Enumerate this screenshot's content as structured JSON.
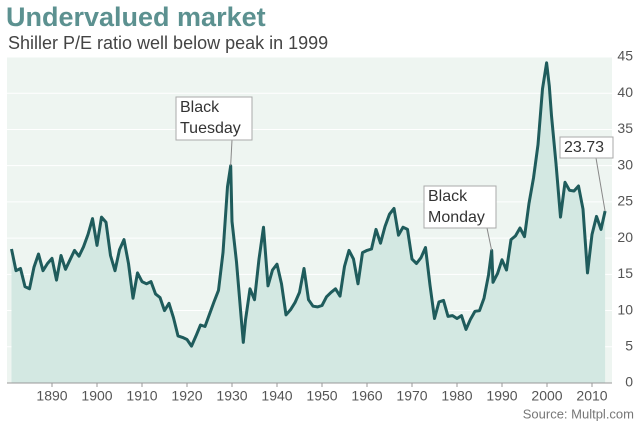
{
  "chart_data": {
    "type": "area",
    "title": "Undervalued market",
    "subtitle": "Shiller P/E ratio well below peak in 1999",
    "source": "Source: Multpl.com",
    "x": [
      1881,
      1882,
      1883,
      1884,
      1885,
      1886,
      1887,
      1888,
      1889,
      1890,
      1891,
      1892,
      1893,
      1894,
      1895,
      1896,
      1897,
      1898,
      1899,
      1900,
      1901,
      1902,
      1903,
      1904,
      1905,
      1906,
      1907,
      1908,
      1909,
      1910,
      1911,
      1912,
      1913,
      1914,
      1915,
      1916,
      1917,
      1918,
      1919,
      1920,
      1921,
      1922,
      1923,
      1924,
      1925,
      1926,
      1927,
      1928,
      1929,
      1929.7,
      1930,
      1931,
      1932,
      1932.5,
      1933,
      1934,
      1935,
      1936,
      1937,
      1938,
      1939,
      1940,
      1941,
      1942,
      1943,
      1944,
      1945,
      1946,
      1947,
      1948,
      1949,
      1950,
      1951,
      1952,
      1953,
      1954,
      1955,
      1956,
      1957,
      1958,
      1959,
      1960,
      1961,
      1962,
      1963,
      1964,
      1965,
      1966,
      1967,
      1968,
      1969,
      1970,
      1971,
      1972,
      1973,
      1974,
      1975,
      1976,
      1977,
      1978,
      1979,
      1980,
      1981,
      1982,
      1983,
      1984,
      1985,
      1986,
      1987,
      1987.7,
      1988,
      1989,
      1990,
      1991,
      1992,
      1993,
      1994,
      1995,
      1996,
      1997,
      1998,
      1999,
      1999.9,
      2000.5,
      2001,
      2002,
      2003,
      2004,
      2005,
      2006,
      2007,
      2008,
      2009,
      2010,
      2011,
      2012,
      2012.9
    ],
    "series": [
      {
        "name": "Shiller P/E",
        "color": "#1f5c5c",
        "fill": "#d3e8e2",
        "values": [
          18.5,
          15.5,
          15.8,
          13.3,
          13.0,
          16.0,
          17.8,
          15.5,
          16.5,
          17.2,
          14.2,
          17.6,
          15.7,
          17.0,
          18.3,
          17.5,
          18.8,
          20.5,
          22.7,
          19.0,
          22.9,
          22.2,
          17.6,
          15.5,
          18.4,
          19.8,
          16.5,
          11.7,
          15.2,
          14.0,
          13.7,
          14.0,
          12.3,
          11.8,
          10.0,
          11.0,
          9.0,
          6.5,
          6.3,
          6.0,
          5.1,
          6.5,
          8.0,
          7.8,
          9.5,
          11.2,
          12.8,
          18.0,
          27.1,
          30.0,
          22.3,
          16.7,
          9.3,
          5.6,
          8.7,
          13.0,
          11.5,
          17.1,
          21.5,
          13.4,
          15.6,
          16.4,
          13.7,
          9.4,
          10.1,
          11.1,
          12.5,
          15.8,
          11.5,
          10.6,
          10.5,
          10.7,
          11.9,
          12.5,
          13.0,
          12.0,
          16.1,
          18.3,
          17.1,
          13.7,
          18.0,
          18.3,
          18.5,
          21.2,
          19.3,
          21.6,
          23.3,
          24.1,
          20.4,
          21.5,
          21.2,
          17.1,
          16.5,
          17.3,
          18.7,
          13.5,
          8.9,
          11.2,
          11.4,
          9.2,
          9.3,
          8.9,
          9.3,
          7.4,
          8.8,
          9.9,
          10.0,
          11.7,
          14.9,
          18.3,
          13.9,
          15.1,
          17.0,
          15.6,
          19.8,
          20.3,
          21.4,
          20.2,
          24.8,
          28.3,
          32.9,
          40.6,
          44.2,
          41.0,
          36.9,
          30.3,
          22.9,
          27.7,
          26.6,
          26.5,
          27.2,
          24.0,
          15.2,
          20.5,
          23.0,
          21.2,
          23.73
        ]
      }
    ],
    "xlim": [
      1880,
      2014
    ],
    "xticks": [
      1890,
      1900,
      1910,
      1920,
      1930,
      1940,
      1950,
      1960,
      1970,
      1980,
      1990,
      2000,
      2010
    ],
    "ylim": [
      0,
      45
    ],
    "yticks": [
      0,
      5,
      10,
      15,
      20,
      25,
      30,
      35,
      40,
      45
    ],
    "grid": true,
    "annotations": [
      {
        "x": 1929.7,
        "lines": [
          "Black",
          "Tuesday"
        ]
      },
      {
        "x": 1987.7,
        "lines": [
          "Black",
          "Monday"
        ]
      },
      {
        "x": 2012.9,
        "lines": [
          "23.73"
        ]
      }
    ]
  }
}
